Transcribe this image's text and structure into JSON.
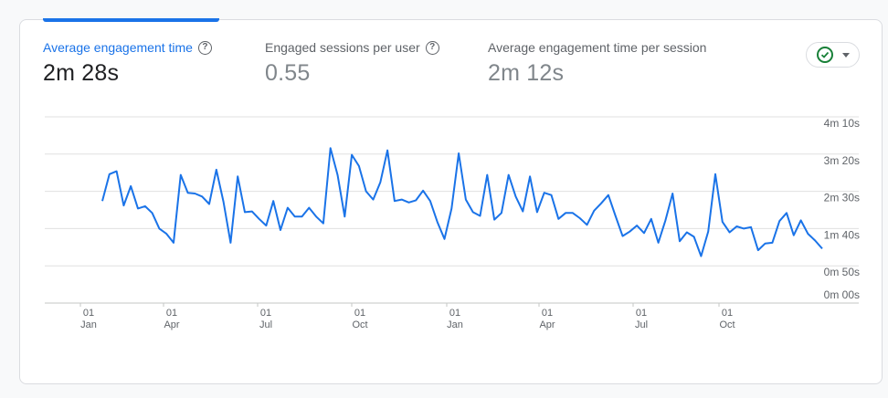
{
  "metrics": [
    {
      "label": "Average engagement time",
      "value": "2m 28s",
      "active": true,
      "has_help": true
    },
    {
      "label": "Engaged sessions per user",
      "value": "0.55",
      "active": false,
      "has_help": true
    },
    {
      "label": "Average engagement time per session",
      "value": "2m 12s",
      "active": false,
      "has_help": false
    }
  ],
  "status_button": {
    "icon": "check-circle-icon",
    "dropdown_icon": "caret-down-icon"
  },
  "colors": {
    "accent": "#1a73e8",
    "line": "#1a73e8",
    "grid": "#e0e0e0",
    "check": "#188038"
  },
  "chart_data": {
    "type": "line",
    "y_ticks": [
      "4m 10s",
      "3m 20s",
      "2m 30s",
      "1m 40s",
      "0m 50s",
      "0m 00s"
    ],
    "x_ticks": [
      {
        "day": "01",
        "month": "Jan"
      },
      {
        "day": "01",
        "month": "Apr"
      },
      {
        "day": "01",
        "month": "Jul"
      },
      {
        "day": "01",
        "month": "Oct"
      },
      {
        "day": "01",
        "month": "Jan"
      },
      {
        "day": "01",
        "month": "Apr"
      },
      {
        "day": "01",
        "month": "Jul"
      },
      {
        "day": "01",
        "month": "Oct"
      }
    ],
    "ylim_seconds": [
      0,
      250
    ],
    "grid": true,
    "series": [
      {
        "values_seconds": [
          137,
          173,
          177,
          131,
          157,
          127,
          130,
          121,
          100,
          93,
          81,
          172,
          148,
          147,
          143,
          133,
          179,
          136,
          81,
          170,
          122,
          123,
          113,
          104,
          137,
          98,
          128,
          116,
          116,
          128,
          116,
          107,
          208,
          172,
          116,
          199,
          184,
          150,
          139,
          162,
          205,
          137,
          139,
          135,
          138,
          151,
          137,
          109,
          86,
          127,
          201,
          139,
          122,
          117,
          172,
          112,
          121,
          172,
          143,
          123,
          170,
          122,
          148,
          145,
          113,
          121,
          121,
          114,
          105,
          124,
          134,
          145,
          117,
          90,
          96,
          104,
          94,
          113,
          81,
          111,
          147,
          83,
          95,
          89,
          63,
          96,
          173,
          109,
          95,
          103,
          100,
          102,
          71,
          80,
          81,
          110,
          121,
          91,
          111,
          93,
          84,
          73
        ]
      }
    ]
  }
}
